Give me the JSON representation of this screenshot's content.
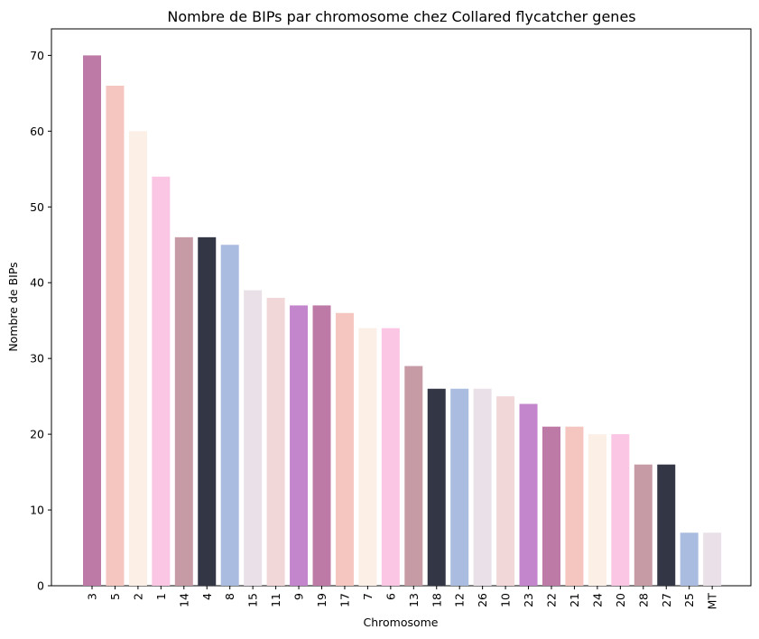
{
  "chart_data": {
    "type": "bar",
    "title": "Nombre de BIPs par chromosome chez Collared flycatcher genes",
    "xlabel": "Chromosome",
    "ylabel": "Nombre de BIPs",
    "categories": [
      "3",
      "5",
      "2",
      "1",
      "14",
      "4",
      "8",
      "15",
      "11",
      "9",
      "19",
      "17",
      "7",
      "6",
      "13",
      "18",
      "12",
      "26",
      "10",
      "23",
      "22",
      "21",
      "24",
      "20",
      "28",
      "27",
      "25",
      "MT"
    ],
    "values": [
      70,
      66,
      60,
      54,
      46,
      46,
      45,
      39,
      38,
      37,
      37,
      36,
      34,
      34,
      29,
      26,
      26,
      26,
      25,
      24,
      21,
      21,
      20,
      20,
      16,
      16,
      7,
      7
    ],
    "colors": [
      "#be7aa6",
      "#f5c6c0",
      "#fbefe6",
      "#fbc6e3",
      "#c69ba6",
      "#333645",
      "#aabcdf",
      "#e9e1e7",
      "#f2d7d8",
      "#c386cc",
      "#be7aa6",
      "#f5c6c0",
      "#fbefe6",
      "#fbc6e3",
      "#c69ba6",
      "#333645",
      "#aabcdf",
      "#e9e1e7",
      "#f2d7d8",
      "#c386cc",
      "#be7aa6",
      "#f5c6c0",
      "#fbefe6",
      "#fbc6e3",
      "#c69ba6",
      "#333645",
      "#aabcdf",
      "#e9e1e7"
    ],
    "yticks": [
      0,
      10,
      20,
      30,
      40,
      50,
      60,
      70
    ],
    "ylim": [
      0,
      73.5
    ],
    "grid": false,
    "legend": "none"
  }
}
